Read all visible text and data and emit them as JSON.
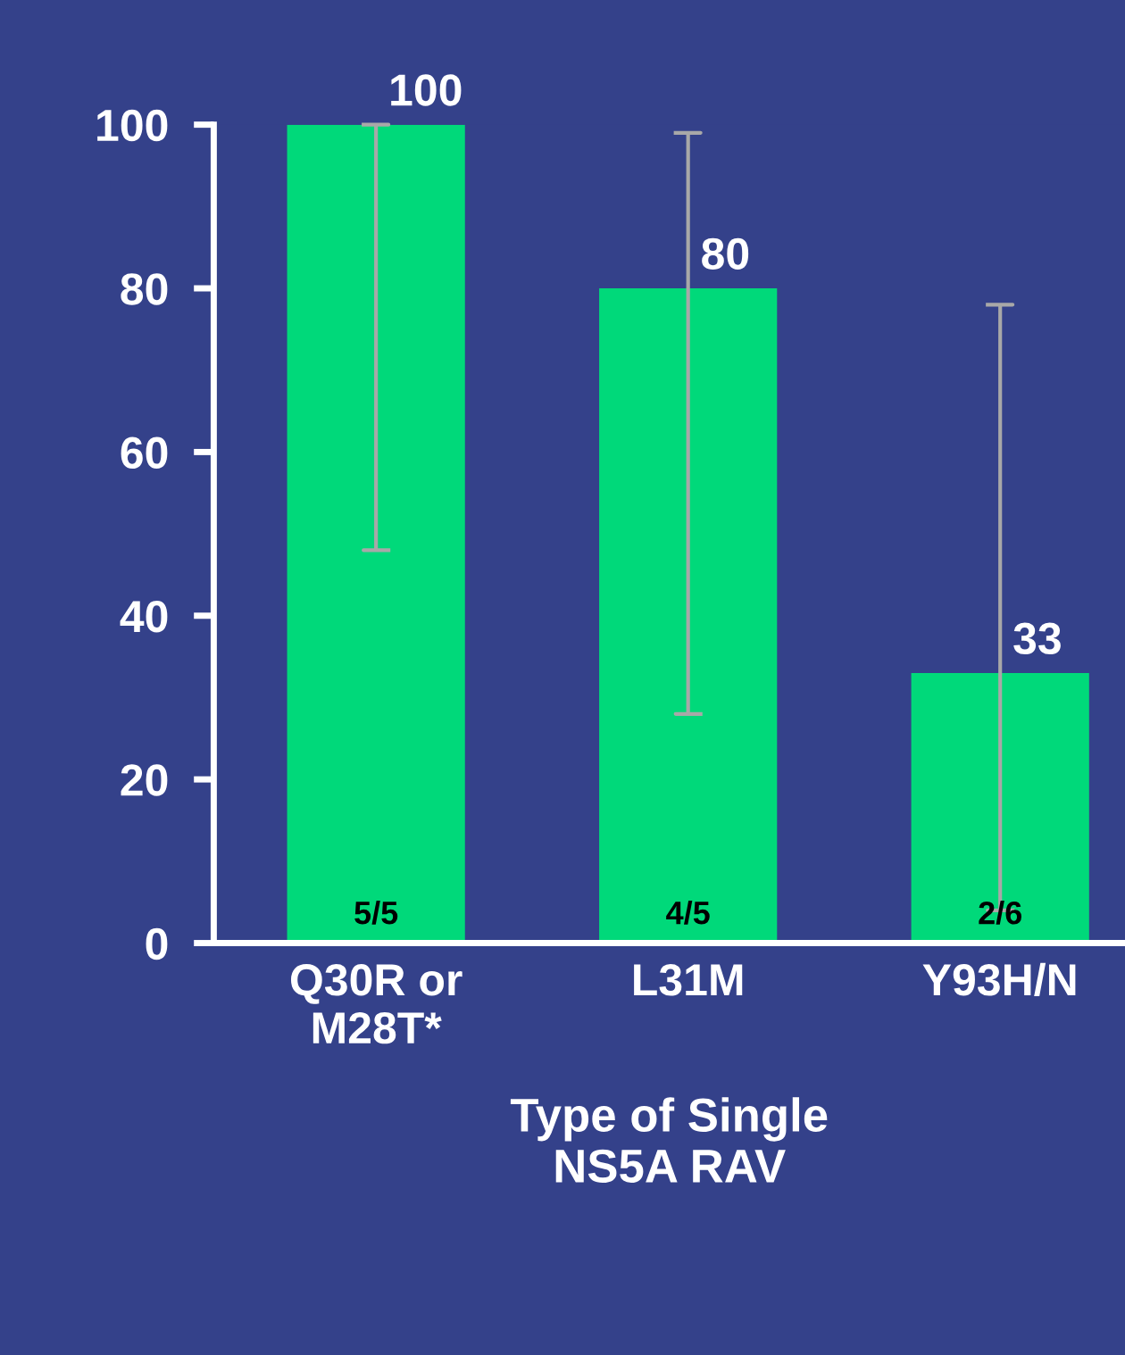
{
  "chart_data": {
    "type": "bar",
    "categories": [
      "Q30R or\nM28T*",
      "L31M",
      "Y93H/N"
    ],
    "values": [
      100,
      80,
      33
    ],
    "color": "#00d97a",
    "errors": [
      [
        48,
        100
      ],
      [
        28,
        99
      ],
      [
        4,
        78
      ]
    ],
    "value_labels": [
      "100",
      "80",
      "33"
    ],
    "xlabel": "Type of Single\nNS5A RAV",
    "ylim": [
      0,
      100
    ],
    "yticks": [
      0,
      20,
      40,
      60,
      80,
      100
    ],
    "grid": false,
    "annotations": [
      "5/5",
      "4/5",
      "2/6"
    ]
  }
}
